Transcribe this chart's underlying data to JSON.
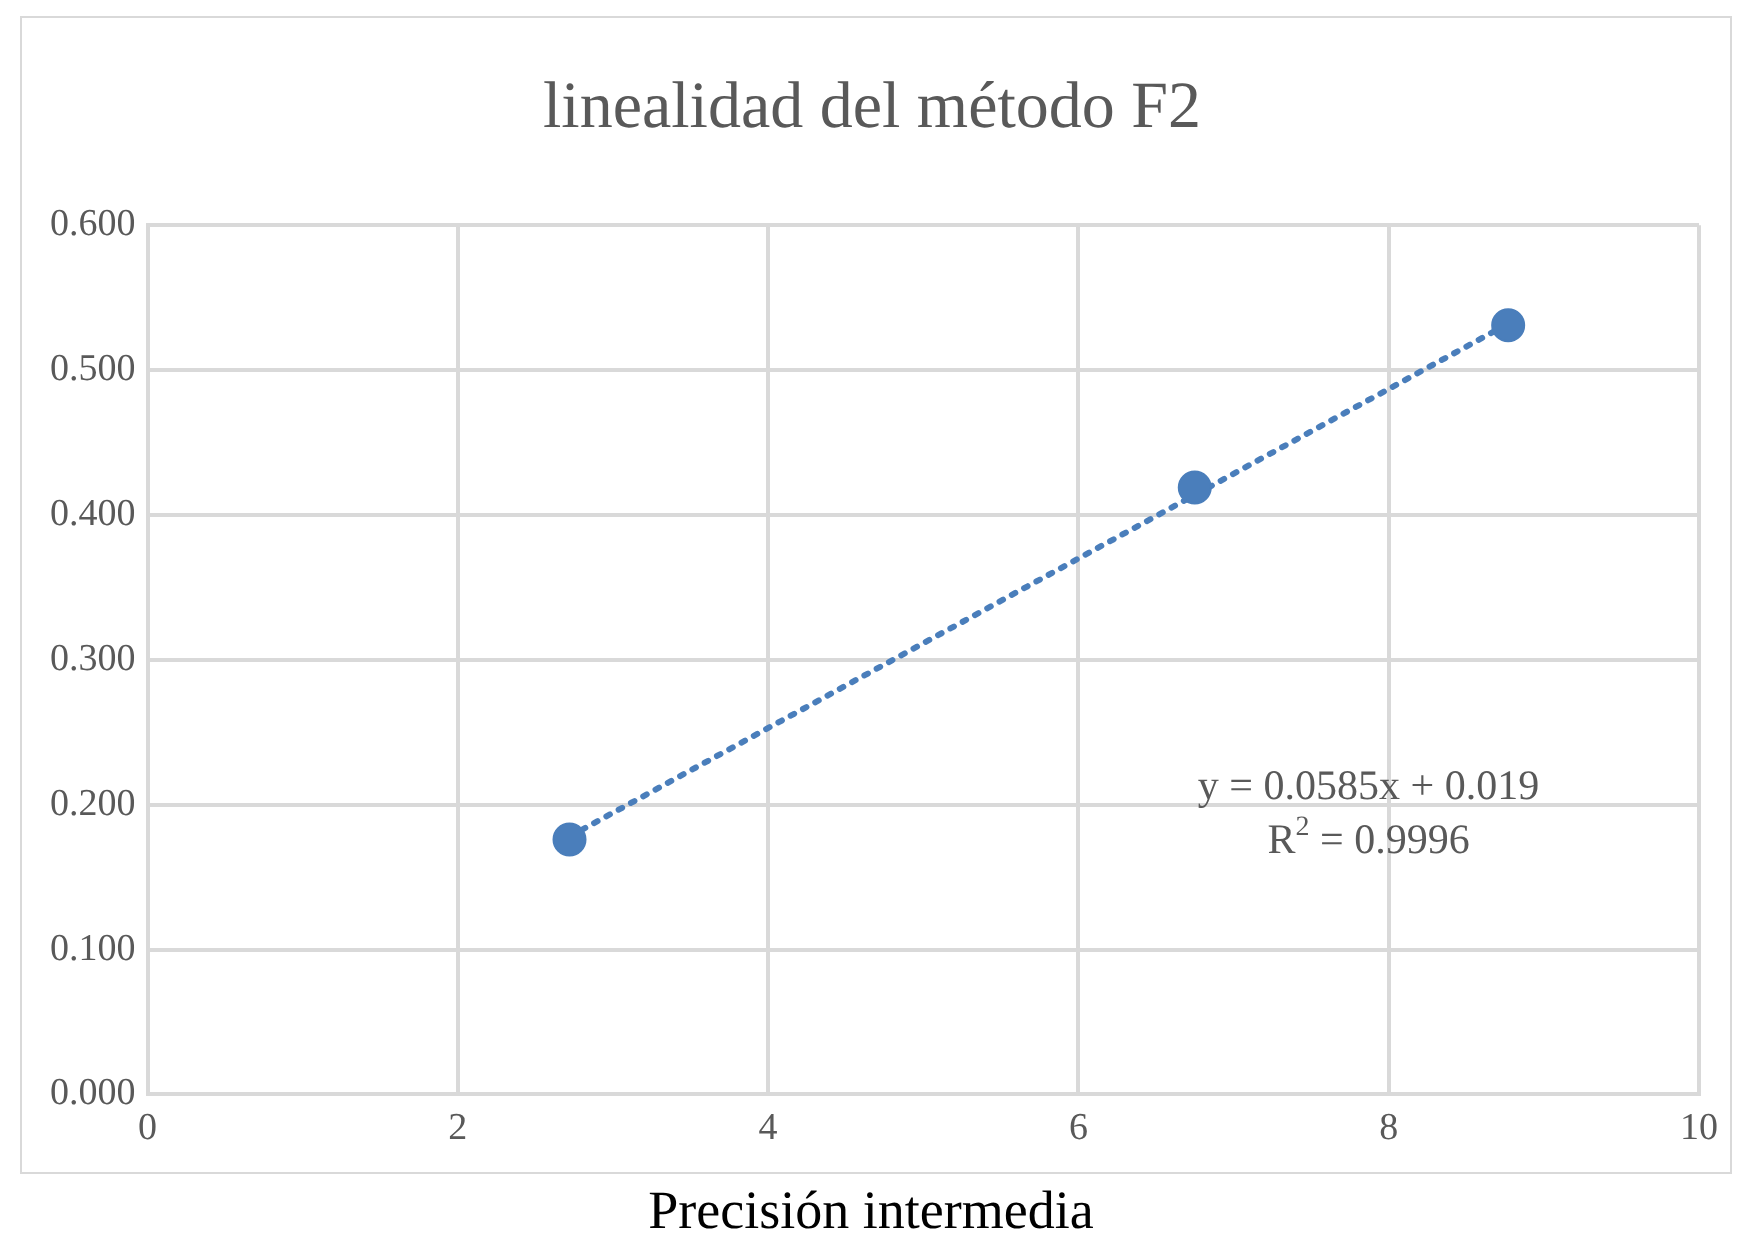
{
  "chart_data": {
    "type": "scatter",
    "title": "linealidad del método F2",
    "xlabel": "Precisión intermedia",
    "xlim": [
      0,
      10
    ],
    "xticks": [
      0,
      2,
      4,
      6,
      8,
      10
    ],
    "ylim": [
      0,
      0.6
    ],
    "yticks": [
      {
        "value": 0,
        "label": "0.000"
      },
      {
        "value": 0.1,
        "label": "0.100"
      },
      {
        "value": 0.2,
        "label": "0.200"
      },
      {
        "value": 0.3,
        "label": "0.300"
      },
      {
        "value": 0.4,
        "label": "0.400"
      },
      {
        "value": 0.5,
        "label": "0.500"
      },
      {
        "value": 0.6,
        "label": "0.600"
      }
    ],
    "grid": true,
    "legend": false,
    "marker": "circle",
    "series": [
      {
        "type": "scatter",
        "color": "#4a7ebb",
        "x": [
          2.72,
          6.75,
          8.77
        ],
        "values": [
          0.176,
          0.419,
          0.531
        ]
      },
      {
        "type": "line",
        "color": "#4a7ebb",
        "line_style": "dotted",
        "marker": "none",
        "x": [
          2.72,
          8.77
        ],
        "values": [
          0.178,
          0.532
        ]
      }
    ],
    "annotations": [
      "y = 0.0585x + 0.019",
      "R$^{2}$ = 0.9996"
    ]
  }
}
